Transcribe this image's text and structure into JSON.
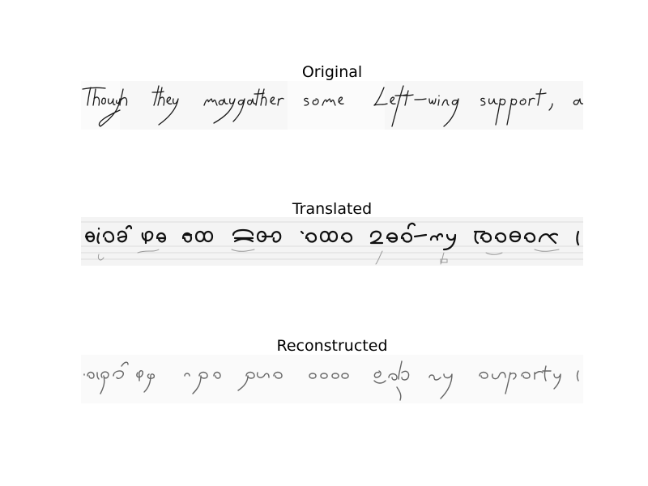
{
  "panels": [
    {
      "title": "Original"
    },
    {
      "title": "Translated"
    },
    {
      "title": "Reconstructed"
    }
  ],
  "colors": {
    "ink": "#1a1a1a",
    "faint_ink": "#8a8a8a",
    "strip_bg": "#f6f6f6",
    "background": "#ffffff"
  }
}
